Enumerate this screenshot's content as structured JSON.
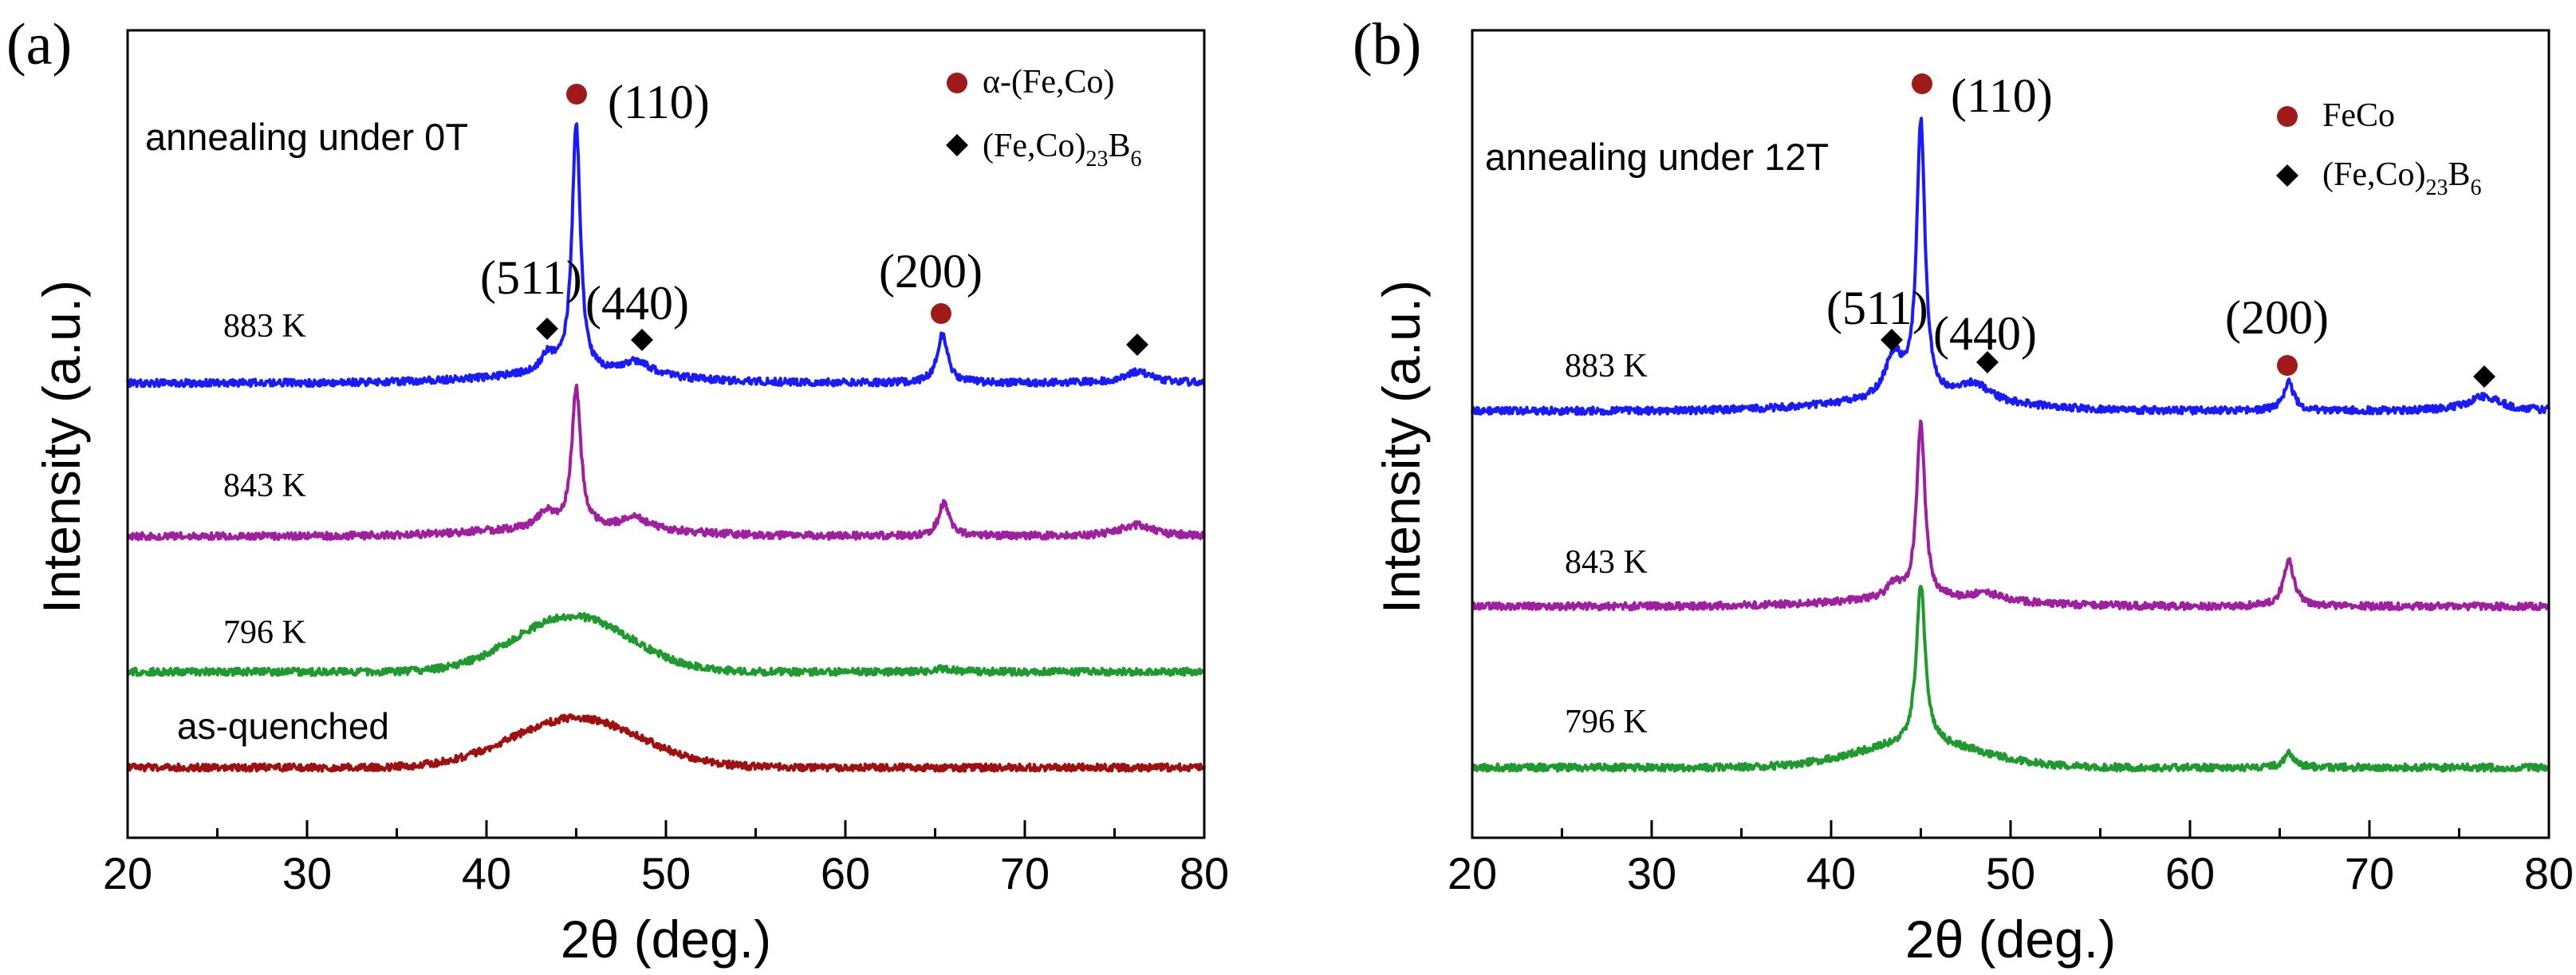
{
  "chart_data": [
    {
      "type": "line",
      "panel_label": "(a)",
      "annotation": "annealing  under 0T",
      "xlabel": "2θ  (deg.)",
      "ylabel": "Intensity (a.u.)",
      "xlim": [
        20,
        80
      ],
      "xticks": [
        20,
        30,
        40,
        50,
        60,
        70,
        80
      ],
      "yticks_shown": false,
      "legend": [
        {
          "symbol": "circle",
          "color": "#a11a1a",
          "label": "α-(Fe,Co)"
        },
        {
          "symbol": "diamond",
          "color": "#000000",
          "label": "(Fe,Co)23B6"
        }
      ],
      "series": [
        {
          "name": "883 K",
          "color": "#1a1aff",
          "baseline": 480,
          "peaks": [
            [
              43.4,
              22,
              0.5
            ],
            [
              45.0,
              312,
              0.28
            ],
            [
              48.4,
              18,
              0.9
            ],
            [
              65.4,
              60,
              0.35
            ],
            [
              76.3,
              14,
              1.0
            ]
          ],
          "humps": [
            [
              45,
              10,
              5
            ]
          ]
        },
        {
          "name": "843 K",
          "color": "#a01fa0",
          "baseline": 672,
          "peaks": [
            [
              43.3,
              20,
              0.5
            ],
            [
              45.0,
              175,
              0.3
            ],
            [
              48.3,
              14,
              0.9
            ],
            [
              65.5,
              42,
              0.35
            ],
            [
              76.2,
              14,
              1.1
            ]
          ],
          "humps": [
            [
              45,
              10,
              5
            ]
          ]
        },
        {
          "name": "796 K",
          "color": "#1f9a2e",
          "baseline": 842,
          "peaks": [
            [
              65.4,
              4,
              0.6
            ]
          ],
          "humps": [
            [
              44.8,
              70,
              3.2
            ]
          ]
        },
        {
          "name": "as-quenched",
          "color": "#a01010",
          "baseline": 962,
          "peaks": [],
          "humps": [
            [
              45.0,
              62,
              3.6
            ]
          ]
        }
      ],
      "curve_labels": [
        "883 K",
        "843 K",
        "796 K",
        "as-quenched"
      ],
      "peak_labels": [
        {
          "label": "(110)",
          "x": 45.0,
          "marker": "circle"
        },
        {
          "label": "(511)",
          "x": 43.4,
          "marker": "diamond"
        },
        {
          "label": "(440)",
          "x": 48.6,
          "marker": "diamond"
        },
        {
          "label": "(200)",
          "x": 65.4,
          "marker": "circle"
        },
        {
          "label": "",
          "x": 76.3,
          "marker": "diamond"
        }
      ],
      "legend_subscripts": [
        "23",
        "6"
      ]
    },
    {
      "type": "line",
      "panel_label": "(b)",
      "annotation": "annealing  under 12T",
      "xlabel": "2θ  (deg.)",
      "ylabel": "Intensity (a.u.)",
      "xlim": [
        20,
        80
      ],
      "xticks": [
        20,
        30,
        40,
        50,
        60,
        70,
        80
      ],
      "yticks_shown": false,
      "legend": [
        {
          "symbol": "circle",
          "color": "#a11a1a",
          "label": "FeCo"
        },
        {
          "symbol": "diamond",
          "color": "#000000",
          "label": "(Fe,Co)23B6"
        }
      ],
      "series": [
        {
          "name": "883 K",
          "color": "#1a1aff",
          "baseline": 515,
          "peaks": [
            [
              43.5,
              55,
              0.6
            ],
            [
              45.0,
              345,
              0.28
            ],
            [
              48.0,
              22,
              1.0
            ],
            [
              65.5,
              35,
              0.35
            ],
            [
              76.4,
              18,
              1.1
            ]
          ],
          "humps": [
            [
              45,
              12,
              5
            ]
          ]
        },
        {
          "name": "843 K",
          "color": "#a01fa0",
          "baseline": 760,
          "peaks": [
            [
              43.5,
              18,
              0.5
            ],
            [
              45.0,
              220,
              0.28
            ],
            [
              48.6,
              10,
              1.0
            ],
            [
              65.5,
              58,
              0.35
            ]
          ],
          "humps": [
            [
              45,
              8,
              5
            ]
          ]
        },
        {
          "name": "796 K",
          "color": "#1f9a2e",
          "baseline": 962,
          "peaks": [
            [
              45.0,
              200,
              0.3
            ],
            [
              65.5,
              18,
              0.35
            ]
          ],
          "humps": [
            [
              45,
              30,
              3.5
            ]
          ]
        }
      ],
      "curve_labels": [
        "883 K",
        "843 K",
        "796 K"
      ],
      "peak_labels": [
        {
          "label": "(110)",
          "x": 45.0,
          "marker": "circle"
        },
        {
          "label": "(511)",
          "x": 43.5,
          "marker": "diamond"
        },
        {
          "label": "(440)",
          "x": 48.6,
          "marker": "diamond"
        },
        {
          "label": "(200)",
          "x": 65.5,
          "marker": "circle"
        },
        {
          "label": "",
          "x": 76.5,
          "marker": "diamond"
        }
      ],
      "legend_subscripts": [
        "23",
        "6"
      ]
    }
  ]
}
